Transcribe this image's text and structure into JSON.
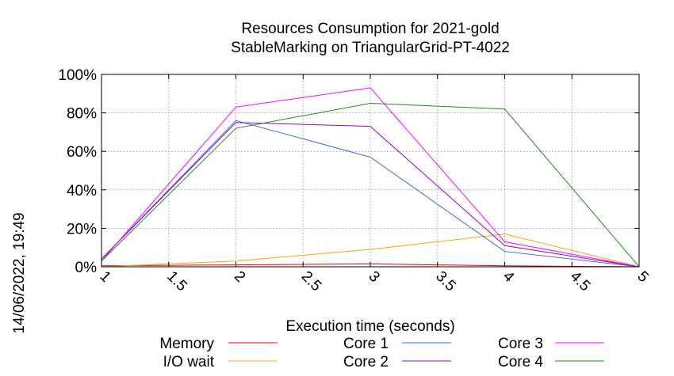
{
  "chart_data": {
    "type": "line",
    "title": [
      "Resources Consumption for 2021-gold",
      "StableMarking on TriangularGrid-PT-4022"
    ],
    "xlabel": "Execution time (seconds)",
    "ylabel": "",
    "side_label": "14/06/2022, 19:49",
    "xlim": [
      1,
      5
    ],
    "ylim": [
      0,
      100
    ],
    "x_ticks": [
      "1",
      "1.5",
      "2",
      "2.5",
      "3",
      "3.5",
      "4",
      "4.5",
      "5"
    ],
    "y_ticks": [
      "0%",
      "20%",
      "40%",
      "60%",
      "80%",
      "100%"
    ],
    "grid": true,
    "legend_position": "bottom",
    "series": [
      {
        "name": "Memory",
        "color": "#ff0000",
        "x": [
          1,
          2,
          3,
          4,
          5
        ],
        "y": [
          0.5,
          1,
          1.5,
          0.5,
          0
        ]
      },
      {
        "name": "I/O wait",
        "color": "#ffa500",
        "x": [
          1,
          2,
          3,
          4,
          5
        ],
        "y": [
          0,
          3,
          9,
          17,
          0
        ]
      },
      {
        "name": "Core 1",
        "color": "#4169e1",
        "x": [
          1,
          2,
          3,
          4,
          5
        ],
        "y": [
          4,
          76,
          57,
          8,
          0
        ]
      },
      {
        "name": "Core 2",
        "color": "#9400d3",
        "x": [
          1,
          2,
          3,
          4,
          5
        ],
        "y": [
          4,
          75,
          73,
          11,
          0
        ]
      },
      {
        "name": "Core 3",
        "color": "#ff00ff",
        "x": [
          1,
          2,
          3,
          4,
          5
        ],
        "y": [
          3,
          83,
          93,
          13,
          0
        ]
      },
      {
        "name": "Core 4",
        "color": "#228b22",
        "x": [
          1,
          2,
          3,
          4,
          5
        ],
        "y": [
          3,
          72,
          85,
          82,
          0
        ]
      }
    ]
  }
}
